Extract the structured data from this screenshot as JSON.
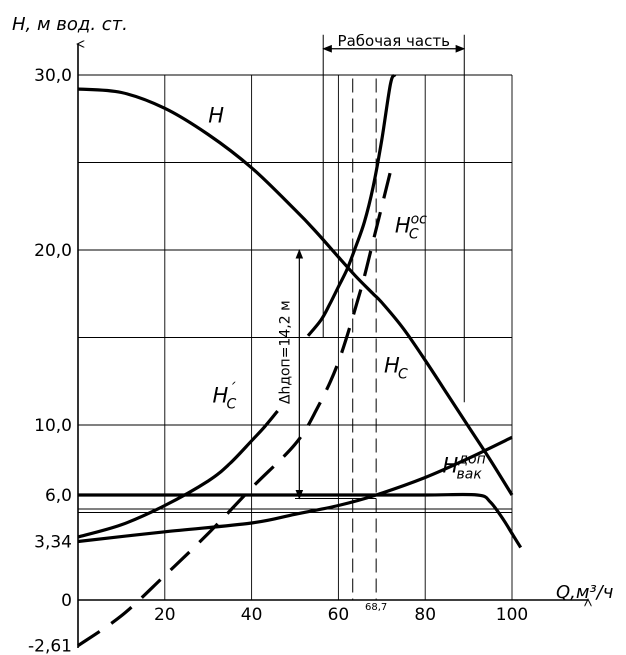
{
  "chart_data": {
    "type": "line",
    "xlabel": "Q,м³/ч",
    "ylabel": "H, м вод. ст.",
    "xlim": [
      0,
      100
    ],
    "ylim": [
      -2.61,
      30
    ],
    "grid": true,
    "x_ticks": [
      {
        "value": 20,
        "label": "20"
      },
      {
        "value": 40,
        "label": "40"
      },
      {
        "value": 60,
        "label": "60"
      },
      {
        "value": 80,
        "label": "80"
      },
      {
        "value": 100,
        "label": "100"
      }
    ],
    "y_ticks": [
      {
        "value": -2.61,
        "label": "-2,61"
      },
      {
        "value": 0,
        "label": "0"
      },
      {
        "value": 3.34,
        "label": "3,34"
      },
      {
        "value": 6,
        "label": "6,0"
      },
      {
        "value": 10,
        "label": "10,0"
      },
      {
        "value": 20,
        "label": "20,0"
      },
      {
        "value": 30,
        "label": "30,0"
      }
    ],
    "series": [
      {
        "name": "H",
        "style": "solid",
        "points": [
          [
            0,
            29.2
          ],
          [
            10,
            29.0
          ],
          [
            20,
            28.1
          ],
          [
            30,
            26.6
          ],
          [
            40,
            24.7
          ],
          [
            50,
            22.3
          ],
          [
            55,
            21.0
          ],
          [
            60,
            19.6
          ],
          [
            64,
            18.5
          ],
          [
            68,
            17.5
          ],
          [
            70,
            17.0
          ],
          [
            75,
            15.5
          ],
          [
            80,
            13.7
          ],
          [
            85,
            11.8
          ],
          [
            90,
            9.9
          ],
          [
            95,
            8.0
          ],
          [
            100,
            6.0
          ]
        ]
      },
      {
        "name": "Hc",
        "style": "solid",
        "points": [
          [
            53,
            15.1
          ],
          [
            56,
            16.0
          ],
          [
            58,
            16.9
          ],
          [
            60,
            17.9
          ],
          [
            62,
            18.9
          ],
          [
            64,
            20.2
          ],
          [
            66,
            21.6
          ],
          [
            68,
            23.6
          ],
          [
            70,
            26.3
          ],
          [
            72,
            29.5
          ],
          [
            73,
            30.0
          ]
        ]
      },
      {
        "name": "H'c",
        "style": "solid",
        "points": [
          [
            0,
            3.6
          ],
          [
            10,
            4.3
          ],
          [
            20,
            5.4
          ],
          [
            30,
            6.8
          ],
          [
            35,
            7.8
          ],
          [
            40,
            9.1
          ],
          [
            43,
            9.9
          ],
          [
            46,
            10.8
          ]
        ]
      },
      {
        "name": "Hc_oc",
        "style": "dashed",
        "points": [
          [
            0,
            -2.61
          ],
          [
            10,
            -0.9
          ],
          [
            20,
            1.4
          ],
          [
            30,
            3.8
          ],
          [
            40,
            6.4
          ],
          [
            50,
            8.9
          ],
          [
            55,
            10.9
          ],
          [
            60,
            13.6
          ],
          [
            65,
            17.6
          ],
          [
            68,
            20.5
          ],
          [
            72,
            24.5
          ]
        ]
      },
      {
        "name": "Hvak_dop",
        "style": "solid",
        "points": [
          [
            0,
            6.0
          ],
          [
            20,
            6.0
          ],
          [
            40,
            6.0
          ],
          [
            60,
            6.0
          ],
          [
            80,
            6.0
          ],
          [
            92,
            6.0
          ],
          [
            95,
            5.6
          ],
          [
            98,
            4.6
          ],
          [
            100,
            3.8
          ],
          [
            102,
            3.0
          ]
        ]
      },
      {
        "name": "system_parabola",
        "style": "solid",
        "points": [
          [
            0,
            3.34
          ],
          [
            20,
            3.9
          ],
          [
            40,
            4.4
          ],
          [
            50,
            4.9
          ],
          [
            60,
            5.4
          ],
          [
            68.7,
            6.0
          ],
          [
            80,
            7.0
          ],
          [
            90,
            8.1
          ],
          [
            100,
            9.3
          ]
        ]
      }
    ],
    "curve_labels": [
      {
        "series": "H",
        "main": "H",
        "sub": "",
        "sup": "",
        "x": 30,
        "y": 27.3
      },
      {
        "series": "Hc_oc",
        "main": "H",
        "sub": "C",
        "sup": "oc",
        "x": 73,
        "y": 21.0
      },
      {
        "series": "Hc",
        "main": "H",
        "sub": "C",
        "sup": "",
        "x": 70.5,
        "y": 13.0
      },
      {
        "series": "H'c",
        "main": "H",
        "sub": "C",
        "sup": "´",
        "x": 31,
        "y": 11.3
      },
      {
        "series": "Hvak_dop",
        "main": "H",
        "sub": "вак",
        "sup": "доп",
        "x": 84,
        "y": 7.3
      }
    ],
    "annotations": {
      "working_range": {
        "label": "Рабочая часть",
        "x_start": 56.5,
        "x_end": 89,
        "y": 31.5
      },
      "operating_points": [
        {
          "x": 63.3,
          "y": 20.0
        },
        {
          "x": 68.7,
          "y": 6.0,
          "label": "68,7"
        }
      ],
      "reference_x": [
        63.3,
        68.7
      ],
      "delta": {
        "label": "Δhдоп=14,2 м",
        "x": 51,
        "y_from": 5.8,
        "y_to": 20.0
      }
    }
  }
}
